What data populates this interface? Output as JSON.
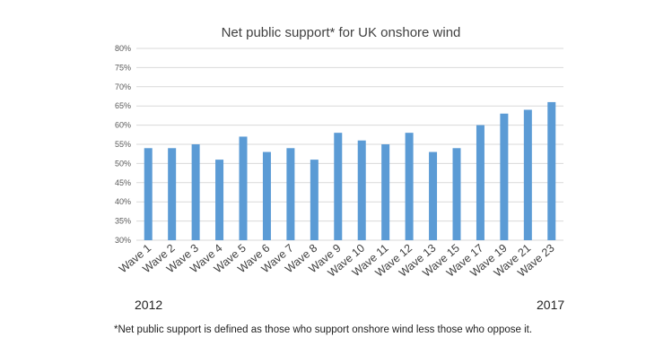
{
  "chart_data": {
    "type": "bar",
    "title": "Net public support* for UK onshore wind",
    "categories": [
      "Wave 1",
      "Wave 2",
      "Wave 3",
      "Wave 4",
      "Wave 5",
      "Wave 6",
      "Wave 7",
      "Wave 8",
      "Wave 9",
      "Wave 10",
      "Wave 11",
      "Wave 12",
      "Wave 13",
      "Wave 15",
      "Wave 17",
      "Wave 19",
      "Wave 21",
      "Wave 23"
    ],
    "values": [
      54,
      54,
      55,
      51,
      57,
      53,
      54,
      51,
      58,
      56,
      55,
      58,
      53,
      54,
      60,
      63,
      64,
      66
    ],
    "ylim": [
      30,
      80
    ],
    "yticks": [
      30,
      35,
      40,
      45,
      50,
      55,
      60,
      65,
      70,
      75,
      80
    ],
    "ytick_suffix": "%",
    "grid": true,
    "bar_color": "#5b9bd5"
  },
  "annotations": {
    "start_year": "2012",
    "end_year": "2017",
    "footnote": "*Net public support is defined as those who support onshore wind less those who oppose it."
  }
}
